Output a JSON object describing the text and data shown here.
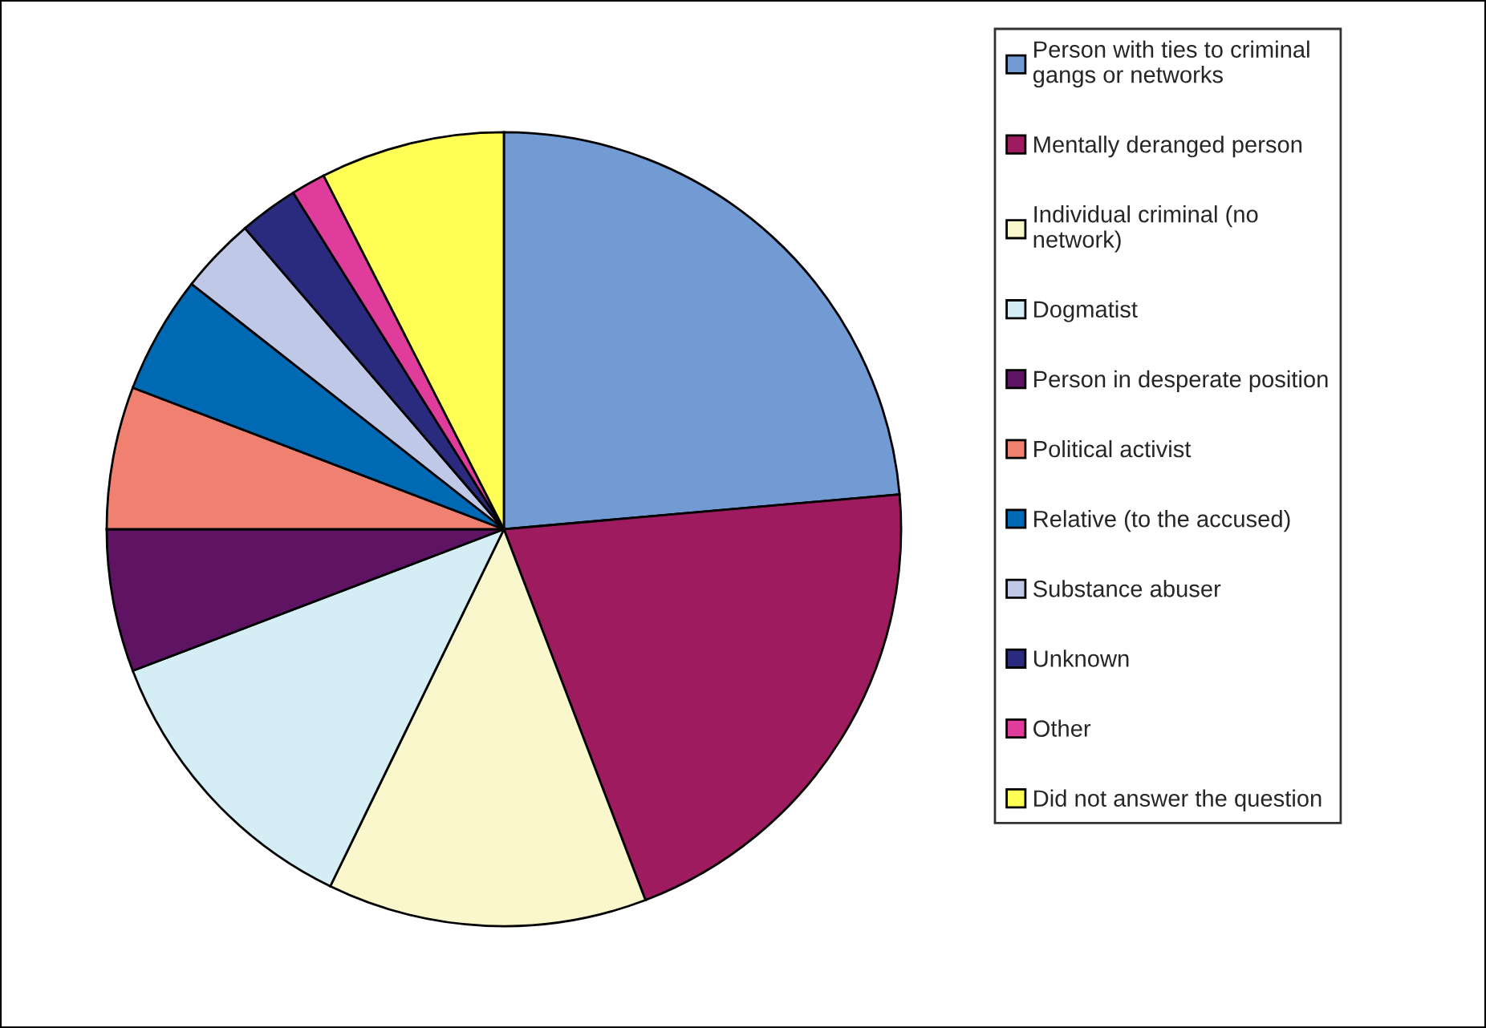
{
  "chart_data": {
    "type": "pie",
    "categories": [
      "Person with ties to criminal gangs or networks",
      "Mentally deranged person",
      "Individual criminal (no network)",
      "Dogmatist",
      "Person in desperate position",
      "Political activist",
      "Relative (to the accused)",
      "Substance abuser",
      "Unknown",
      "Other",
      "Did not answer the question"
    ],
    "values": [
      23.6,
      20.6,
      13.0,
      12.0,
      5.8,
      5.8,
      4.8,
      3.1,
      2.4,
      1.4,
      7.5
    ],
    "colors": [
      "#729bd3",
      "#9e1b5f",
      "#faf7cc",
      "#d5eef5",
      "#5e1363",
      "#f08070",
      "#0069b4",
      "#c0c8e8",
      "#2a2a7e",
      "#e03c9b",
      "#ffff55"
    ],
    "legend": "right"
  }
}
